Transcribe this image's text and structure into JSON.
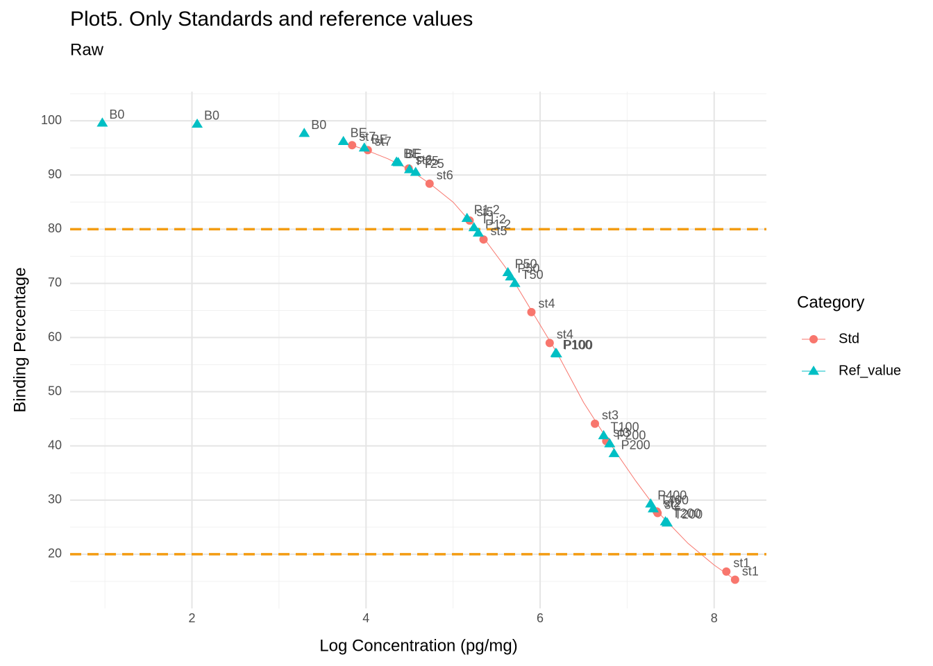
{
  "chart_data": {
    "type": "scatter",
    "title": "Plot5. Only Standards and reference values",
    "subtitle": "Raw",
    "x_label": "Log Concentration (pg/mg)",
    "y_label": "Binding Percentage",
    "legend_title": "Category",
    "xlim": [
      0.6,
      8.6
    ],
    "ylim": [
      10,
      105.4
    ],
    "xticks": [
      2,
      4,
      6,
      8
    ],
    "yticks": [
      20,
      30,
      40,
      50,
      60,
      70,
      80,
      90,
      100
    ],
    "minor_xticks": [
      1,
      3,
      5,
      7
    ],
    "minor_yticks": [
      15,
      25,
      35,
      45,
      55,
      65,
      75,
      85,
      95,
      105
    ],
    "grid": true,
    "hlines": {
      "values": [
        80,
        20
      ],
      "color": "#F39C12"
    },
    "curve": {
      "color": "#F8766D",
      "x": [
        3.84,
        4.0,
        4.25,
        4.5,
        4.75,
        5.0,
        5.3,
        5.6,
        5.9,
        6.2,
        6.5,
        6.8,
        7.1,
        7.4,
        7.7,
        8.0,
        8.24
      ],
      "y": [
        95.5,
        94.6,
        93.0,
        91.0,
        88.2,
        85.0,
        79.5,
        73.0,
        65.0,
        57.0,
        48.0,
        40.5,
        33.5,
        27.0,
        22.0,
        18.0,
        15.3
      ]
    },
    "series": [
      {
        "name": "Std",
        "color": "#F8766D",
        "marker": "circle",
        "x": [
          3.84,
          4.02,
          4.49,
          4.73,
          5.19,
          5.35,
          5.9,
          6.11,
          6.63,
          6.76,
          7.34,
          7.35,
          8.14,
          8.24
        ],
        "values": [
          95.5,
          94.6,
          91.2,
          88.4,
          81.6,
          78.1,
          64.7,
          59.0,
          44.1,
          40.9,
          27.9,
          27.6,
          16.8,
          15.3
        ],
        "labels": [
          "st7",
          "st7",
          "st6",
          "st6",
          "st5",
          "st5",
          "st4",
          "st4",
          "st3",
          "st3",
          "st2",
          "st2",
          "st1",
          "st1"
        ]
      },
      {
        "name": "Ref_value",
        "color": "#00BFC4",
        "marker": "triangle",
        "x": [
          0.97,
          2.06,
          3.29,
          3.74,
          3.98,
          4.35,
          4.37,
          4.5,
          4.57,
          5.16,
          5.24,
          5.29,
          5.63,
          5.66,
          5.71,
          6.18,
          6.19,
          6.73,
          6.8,
          6.85,
          7.27,
          7.3,
          7.44,
          7.46
        ],
        "values": [
          99.6,
          99.4,
          97.7,
          96.2,
          95.0,
          92.4,
          92.3,
          91.0,
          90.5,
          82.0,
          80.3,
          79.3,
          72.0,
          71.2,
          70.0,
          57.1,
          57.0,
          41.9,
          40.4,
          38.6,
          29.3,
          28.4,
          26.0,
          25.8
        ],
        "labels": [
          "B0",
          "B0",
          "B0",
          "BE",
          "BE",
          "BE",
          "BE",
          "P25",
          "T25",
          "P1:2",
          "T1:2",
          "P1:2",
          "P50",
          "P50",
          "T50",
          "P100",
          "P100",
          "T100",
          "P200",
          "P200",
          "P400",
          "T400",
          "T200",
          "T200"
        ]
      }
    ]
  }
}
